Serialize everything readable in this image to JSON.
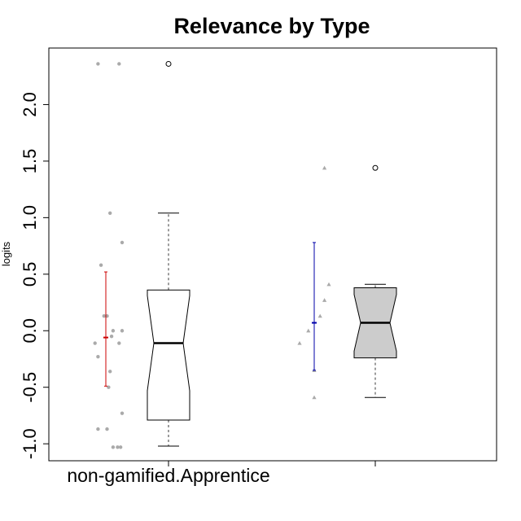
{
  "chart_data": {
    "type": "boxplot",
    "title": "Relevance by Type",
    "xlabel": "",
    "ylabel": "logits",
    "ylim": [
      -1.15,
      2.5
    ],
    "yticks": [
      -1.0,
      -0.5,
      0.0,
      0.5,
      1.0,
      1.5,
      2.0
    ],
    "ytick_labels": [
      "-1.0",
      "-0.5",
      "0.0",
      "0.5",
      "1.0",
      "1.5",
      "2.0"
    ],
    "categories": [
      "non-gamified.Apprentice",
      ""
    ],
    "groups": [
      {
        "category": "non-gamified.Apprentice",
        "notched": true,
        "fill": "#ffffff",
        "box": {
          "lower_whisker": -1.02,
          "q1": -0.79,
          "notch_low": -0.53,
          "median": -0.11,
          "notch_high": 0.31,
          "q3": 0.36,
          "upper_whisker": 1.04
        },
        "outliers": [
          2.36
        ],
        "mean_ci": {
          "mean": -0.06,
          "low": -0.49,
          "high": 0.52,
          "color": "#cc0000"
        },
        "points": [
          {
            "x": 0.2,
            "y": 2.36
          },
          {
            "x": 0.9,
            "y": 2.36
          },
          {
            "x": 0.1,
            "y": -0.11
          },
          {
            "x": 0.2,
            "y": -0.23
          },
          {
            "x": 0.3,
            "y": 0.58
          },
          {
            "x": 0.4,
            "y": 0.13
          },
          {
            "x": 0.5,
            "y": 0.13
          },
          {
            "x": 0.6,
            "y": 1.04
          },
          {
            "x": 0.6,
            "y": -0.36
          },
          {
            "x": 0.5,
            "y": -0.87
          },
          {
            "x": 0.2,
            "y": -0.87
          },
          {
            "x": 0.7,
            "y": -1.03
          },
          {
            "x": 0.7,
            "y": 0.0
          },
          {
            "x": 0.85,
            "y": -1.03
          },
          {
            "x": 0.95,
            "y": -1.03
          },
          {
            "x": 0.9,
            "y": -0.11
          },
          {
            "x": 1.0,
            "y": 0.0
          },
          {
            "x": 1.0,
            "y": 0.78
          },
          {
            "x": 1.0,
            "y": -0.73
          },
          {
            "x": 0.55,
            "y": -0.5
          },
          {
            "x": 0.65,
            "y": -0.05
          }
        ],
        "point_color": "#aaaaaa",
        "point_shape": "circle"
      },
      {
        "category": "",
        "notched": true,
        "fill": "#cccccc",
        "box": {
          "lower_whisker": -0.59,
          "q1": -0.24,
          "notch_low": -0.18,
          "median": 0.07,
          "notch_high": 0.32,
          "q3": 0.38,
          "upper_whisker": 0.41
        },
        "outliers": [
          1.44
        ],
        "mean_ci": {
          "mean": 0.07,
          "low": -0.35,
          "high": 0.78,
          "color": "#0000aa"
        },
        "points": [
          {
            "x": 0.0,
            "y": -0.11
          },
          {
            "x": 0.3,
            "y": 0.0
          },
          {
            "x": 0.5,
            "y": -0.35
          },
          {
            "x": 0.5,
            "y": -0.59
          },
          {
            "x": 0.7,
            "y": 0.13
          },
          {
            "x": 0.85,
            "y": 0.27
          },
          {
            "x": 0.85,
            "y": 1.44
          },
          {
            "x": 1.0,
            "y": 0.41
          }
        ],
        "point_color": "#aaaaaa",
        "point_shape": "triangle"
      }
    ]
  }
}
